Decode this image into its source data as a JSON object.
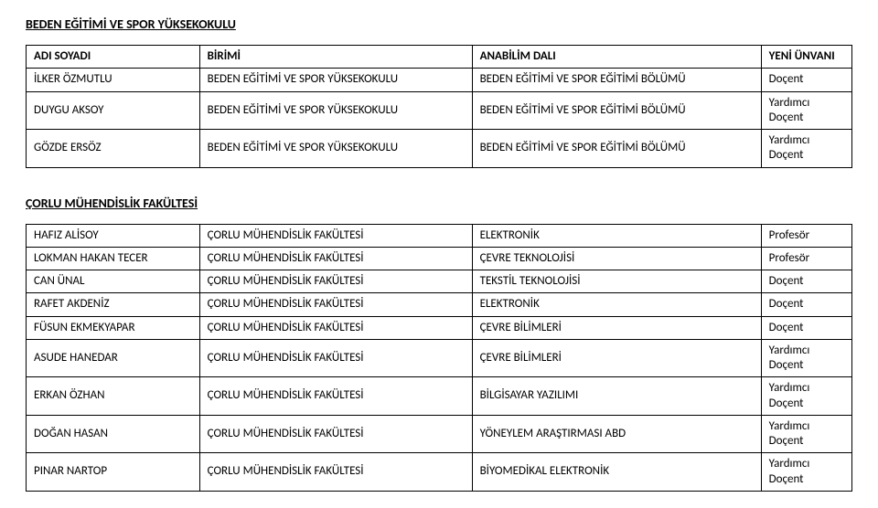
{
  "section1": {
    "title": "BEDEN EĞİTİMİ VE SPOR YÜKSEKOKULU",
    "headers": [
      "ADI SOYADI",
      "BİRİMİ",
      "ANABİLİM DALI",
      "YENİ ÜNVANI"
    ],
    "rows": [
      {
        "name": "İLKER ÖZMUTLU",
        "unit": "BEDEN EĞİTİMİ VE SPOR YÜKSEKOKULU",
        "dept": "BEDEN EĞİTİMİ VE SPOR EĞİTİMİ BÖLÜMÜ",
        "title": "Doçent"
      },
      {
        "name": "DUYGU AKSOY",
        "unit": "BEDEN EĞİTİMİ VE SPOR YÜKSEKOKULU",
        "dept": "BEDEN EĞİTİMİ VE SPOR EĞİTİMİ BÖLÜMÜ",
        "title": "Yardımcı\nDoçent"
      },
      {
        "name": "GÖZDE ERSÖZ",
        "unit": "BEDEN EĞİTİMİ VE SPOR YÜKSEKOKULU",
        "dept": "BEDEN EĞİTİMİ VE SPOR EĞİTİMİ BÖLÜMÜ",
        "title": "Yardımcı\nDoçent"
      }
    ]
  },
  "section2": {
    "title": "ÇORLU MÜHENDİSLİK FAKÜLTESİ",
    "rows": [
      {
        "name": "HAFIZ ALİSOY",
        "unit": "ÇORLU MÜHENDİSLİK FAKÜLTESİ",
        "dept": "ELEKTRONİK",
        "title": "Profesör"
      },
      {
        "name": "LOKMAN HAKAN TECER",
        "unit": "ÇORLU MÜHENDİSLİK FAKÜLTESİ",
        "dept": "ÇEVRE TEKNOLOJİSİ",
        "title": "Profesör"
      },
      {
        "name": "CAN ÜNAL",
        "unit": "ÇORLU MÜHENDİSLİK FAKÜLTESİ",
        "dept": "TEKSTİL TEKNOLOJİSİ",
        "title": "Doçent"
      },
      {
        "name": "RAFET AKDENİZ",
        "unit": "ÇORLU MÜHENDİSLİK FAKÜLTESİ",
        "dept": "ELEKTRONİK",
        "title": "Doçent"
      },
      {
        "name": "FÜSUN EKMEKYAPAR",
        "unit": "ÇORLU MÜHENDİSLİK FAKÜLTESİ",
        "dept": "ÇEVRE BİLİMLERİ",
        "title": "Doçent"
      },
      {
        "name": "ASUDE HANEDAR",
        "unit": "ÇORLU MÜHENDİSLİK FAKÜLTESİ",
        "dept": "ÇEVRE BİLİMLERİ",
        "title": "Yardımcı\nDoçent"
      },
      {
        "name": "ERKAN ÖZHAN",
        "unit": "ÇORLU MÜHENDİSLİK FAKÜLTESİ",
        "dept": "BİLGİSAYAR YAZILIMI",
        "title": "Yardımcı\nDoçent"
      },
      {
        "name": "DOĞAN HASAN",
        "unit": "ÇORLU MÜHENDİSLİK FAKÜLTESİ",
        "dept": "YÖNEYLEM ARAŞTIRMASI ABD",
        "title": "Yardımcı\nDoçent"
      },
      {
        "name": "PINAR NARTOP",
        "unit": "ÇORLU MÜHENDİSLİK FAKÜLTESİ",
        "dept": "BİYOMEDİKAL ELEKTRONİK",
        "title": "Yardımcı\nDoçent"
      }
    ]
  }
}
